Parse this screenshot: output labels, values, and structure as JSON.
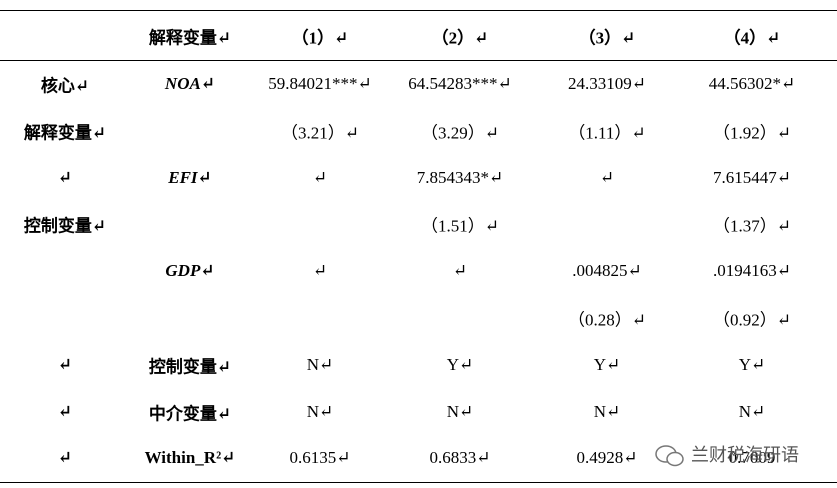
{
  "table": {
    "header": [
      null,
      "解释变量↵",
      "（1）↵",
      "（2）↵",
      "（3）↵",
      "（4）↵"
    ],
    "rows": [
      [
        "核心↵",
        "NOA↵",
        "59.84021***↵",
        "64.54283***↵",
        "24.33109↵",
        "44.56302*↵"
      ],
      [
        "解释变量↵",
        null,
        "（3.21）↵",
        "（3.29）↵",
        "（1.11）↵",
        "（1.92）↵"
      ],
      [
        "↵",
        "EFI↵",
        "↵",
        "7.854343*↵",
        "↵",
        "7.615447↵"
      ],
      [
        "控制变量↵",
        null,
        null,
        "（1.51）↵",
        null,
        "（1.37）↵"
      ],
      [
        null,
        "GDP↵",
        "↵",
        "↵",
        ".004825↵",
        ".0194163↵"
      ],
      [
        null,
        null,
        null,
        null,
        "（0.28）↵",
        "（0.92）↵"
      ],
      [
        "↵",
        "控制变量↵",
        "N↵",
        "Y↵",
        "Y↵",
        "Y↵"
      ],
      [
        "↵",
        "中介变量↵",
        "N↵",
        "N↵",
        "N↵",
        "N↵"
      ],
      [
        "↵",
        "Within_R²↵",
        "0.6135↵",
        "0.6833↵",
        "0.4928↵",
        "0.7009"
      ]
    ]
  },
  "watermark": "兰财税海研语"
}
